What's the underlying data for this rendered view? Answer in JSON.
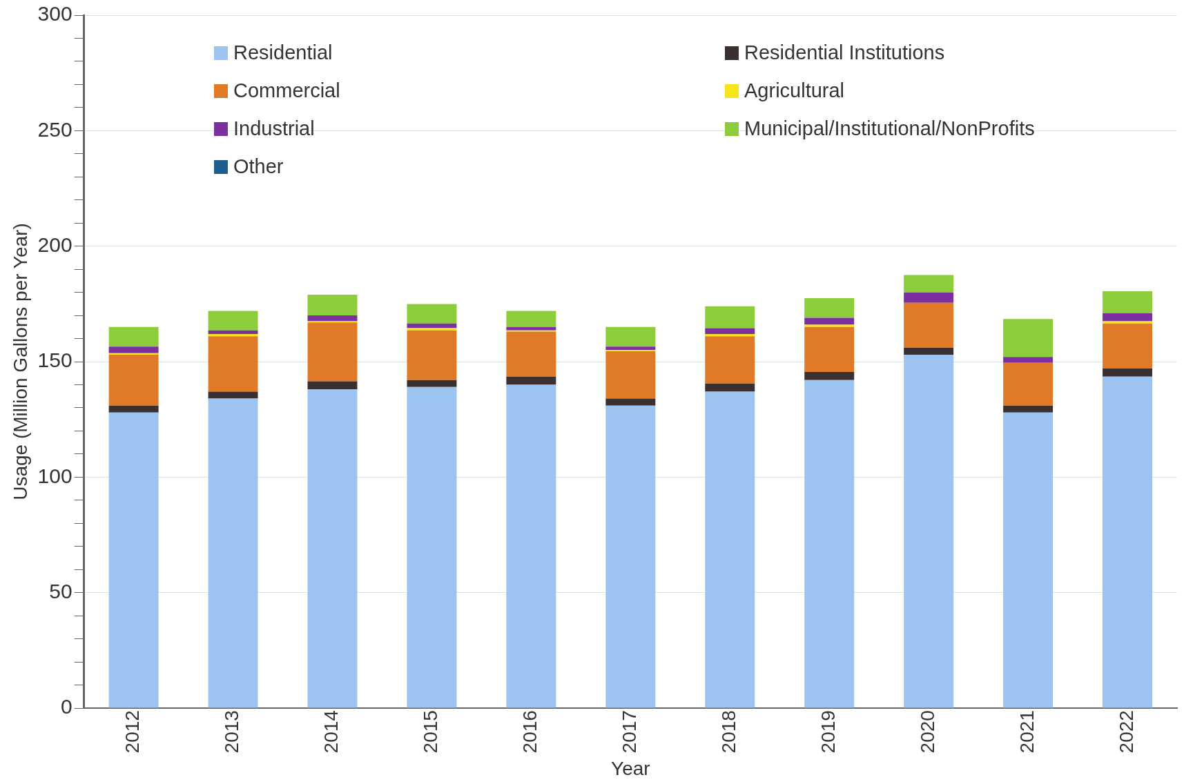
{
  "chart_data": {
    "type": "bar",
    "stacked": true,
    "xlabel": "Year",
    "ylabel": "Usage (Million Gallons per Year)",
    "categories": [
      "2012",
      "2013",
      "2014",
      "2015",
      "2016",
      "2017",
      "2018",
      "2019",
      "2020",
      "2021",
      "2022"
    ],
    "series": [
      {
        "name": "Residential",
        "color": "#9dc3f0",
        "values": [
          128,
          134,
          138,
          139,
          140,
          131,
          137,
          142,
          153,
          128,
          143.5
        ]
      },
      {
        "name": "Residential Institutions",
        "color": "#3b3030",
        "values": [
          3,
          3,
          3.5,
          3,
          3.5,
          3,
          3.5,
          3.5,
          3,
          3,
          3.5
        ]
      },
      {
        "name": "Commercial",
        "color": "#e07a26",
        "values": [
          22,
          24,
          25.5,
          21.5,
          19.5,
          20.5,
          20.5,
          19.5,
          19.5,
          18.5,
          19.5
        ]
      },
      {
        "name": "Agricultural",
        "color": "#f5e61a",
        "values": [
          0.7,
          1,
          0.5,
          1,
          0.5,
          0.5,
          1,
          1,
          0,
          0,
          1
        ]
      },
      {
        "name": "Industrial",
        "color": "#7b2fa0",
        "values": [
          2.8,
          1.5,
          2.5,
          2,
          1.5,
          1.5,
          2.5,
          3,
          4.5,
          2.5,
          3.5
        ]
      },
      {
        "name": "Municipal/Institutional/NonProfits",
        "color": "#8ccd3c",
        "values": [
          8.5,
          8.5,
          9,
          8.5,
          7,
          8.5,
          9.5,
          8.5,
          7.5,
          16.5,
          9.5
        ]
      },
      {
        "name": "Other",
        "color": "#1f5f8f",
        "values": [
          0,
          0,
          0,
          0,
          0,
          0,
          0,
          0,
          0,
          0,
          0
        ]
      }
    ],
    "ylim": [
      0,
      300
    ],
    "yticks": [
      0,
      {
        "value": 10,
        "label": null
      },
      {
        "value": 20,
        "label": null
      },
      {
        "value": 30,
        "label": null
      },
      {
        "value": 40,
        "label": null
      },
      50,
      {
        "value": 60,
        "label": null
      },
      {
        "value": 70,
        "label": null
      },
      {
        "value": 80,
        "label": null
      },
      {
        "value": 90,
        "label": null
      },
      100,
      {
        "value": 110,
        "label": null
      },
      {
        "value": 120,
        "label": null
      },
      {
        "value": 130,
        "label": null
      },
      {
        "value": 140,
        "label": null
      },
      150,
      {
        "value": 160,
        "label": null
      },
      {
        "value": 170,
        "label": null
      },
      {
        "value": 180,
        "label": null
      },
      {
        "value": 190,
        "label": null
      },
      200,
      {
        "value": 210,
        "label": null
      },
      {
        "value": 220,
        "label": null
      },
      {
        "value": 230,
        "label": null
      },
      {
        "value": 240,
        "label": null
      },
      250,
      {
        "value": 260,
        "label": null
      },
      {
        "value": 270,
        "label": null
      },
      {
        "value": 280,
        "label": null
      },
      {
        "value": 290,
        "label": null
      },
      300
    ],
    "grid": "y",
    "legend": "top"
  }
}
